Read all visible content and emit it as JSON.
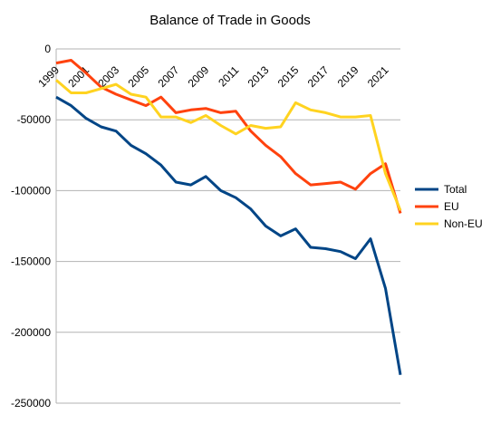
{
  "chart_data": {
    "type": "line",
    "title": "Balance of Trade in Goods",
    "xlabel": "",
    "ylabel": "",
    "ylim": [
      -250000,
      0
    ],
    "yticks": [
      0,
      -50000,
      -100000,
      -150000,
      -200000,
      -250000
    ],
    "ytick_labels": [
      "0",
      "-50000",
      "-100000",
      "-150000",
      "-200000",
      "-250000"
    ],
    "x": [
      1999,
      2000,
      2001,
      2002,
      2003,
      2004,
      2005,
      2006,
      2007,
      2008,
      2009,
      2010,
      2011,
      2012,
      2013,
      2014,
      2015,
      2016,
      2017,
      2018,
      2019,
      2020,
      2021,
      2022
    ],
    "xtick_labels": [
      "1999",
      "2001",
      "2003",
      "2005",
      "2007",
      "2009",
      "2011",
      "2013",
      "2015",
      "2017",
      "2019",
      "2021"
    ],
    "grid": "horizontal",
    "legend_position": "right",
    "series": [
      {
        "name": "Total",
        "color": "#004586",
        "values": [
          -34000,
          -40000,
          -49000,
          -55000,
          -58000,
          -68000,
          -74000,
          -82000,
          -94000,
          -96000,
          -90000,
          -100000,
          -105000,
          -113000,
          -125000,
          -132000,
          -127000,
          -140000,
          -141000,
          -143000,
          -148000,
          -134000,
          -169000,
          -230000
        ]
      },
      {
        "name": "EU",
        "color": "#ff420e",
        "values": [
          -10000,
          -8000,
          -17000,
          -27000,
          -32000,
          -36000,
          -40000,
          -34000,
          -45000,
          -43000,
          -42000,
          -45000,
          -44000,
          -58000,
          -68000,
          -76000,
          -88000,
          -96000,
          -95000,
          -94000,
          -99000,
          -88000,
          -81000,
          -116000
        ]
      },
      {
        "name": "Non-EU",
        "color": "#ffd320",
        "values": [
          -22000,
          -31000,
          -31000,
          -28000,
          -25000,
          -32000,
          -34000,
          -48000,
          -48000,
          -52000,
          -47000,
          -54000,
          -60000,
          -54000,
          -56000,
          -55000,
          -38000,
          -43000,
          -45000,
          -48000,
          -48000,
          -47000,
          -88000,
          -114000
        ]
      }
    ]
  }
}
